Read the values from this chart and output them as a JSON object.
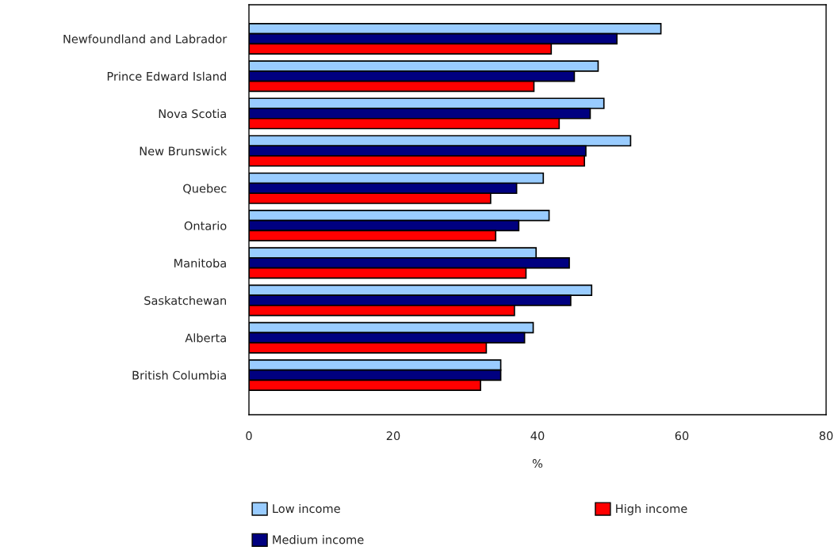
{
  "chart_data": {
    "type": "bar",
    "orientation": "horizontal",
    "xlabel": "%",
    "categories": [
      "Newfoundland and Labrador",
      "Prince Edward Island",
      "Nova Scotia",
      "New Brunswick",
      "Quebec",
      "Ontario",
      "Manitoba",
      "Saskatchewan",
      "Alberta",
      "British Columbia"
    ],
    "series": [
      {
        "name": "Low income",
        "color": "#99ccff",
        "values": [
          57.1,
          48.4,
          49.2,
          52.9,
          40.8,
          41.6,
          39.8,
          47.5,
          39.4,
          34.9
        ]
      },
      {
        "name": "Medium income",
        "color": "#000080",
        "values": [
          51.0,
          45.1,
          47.3,
          46.7,
          37.1,
          37.4,
          44.4,
          44.6,
          38.2,
          34.9
        ]
      },
      {
        "name": "High income",
        "color": "#ff0000",
        "values": [
          41.9,
          39.5,
          43.0,
          46.5,
          33.5,
          34.2,
          38.4,
          36.8,
          32.9,
          32.1
        ]
      }
    ],
    "xlim": [
      0,
      80
    ],
    "xticks": [
      0,
      20,
      40,
      60,
      80
    ],
    "grid": false,
    "legend": "bottom"
  }
}
